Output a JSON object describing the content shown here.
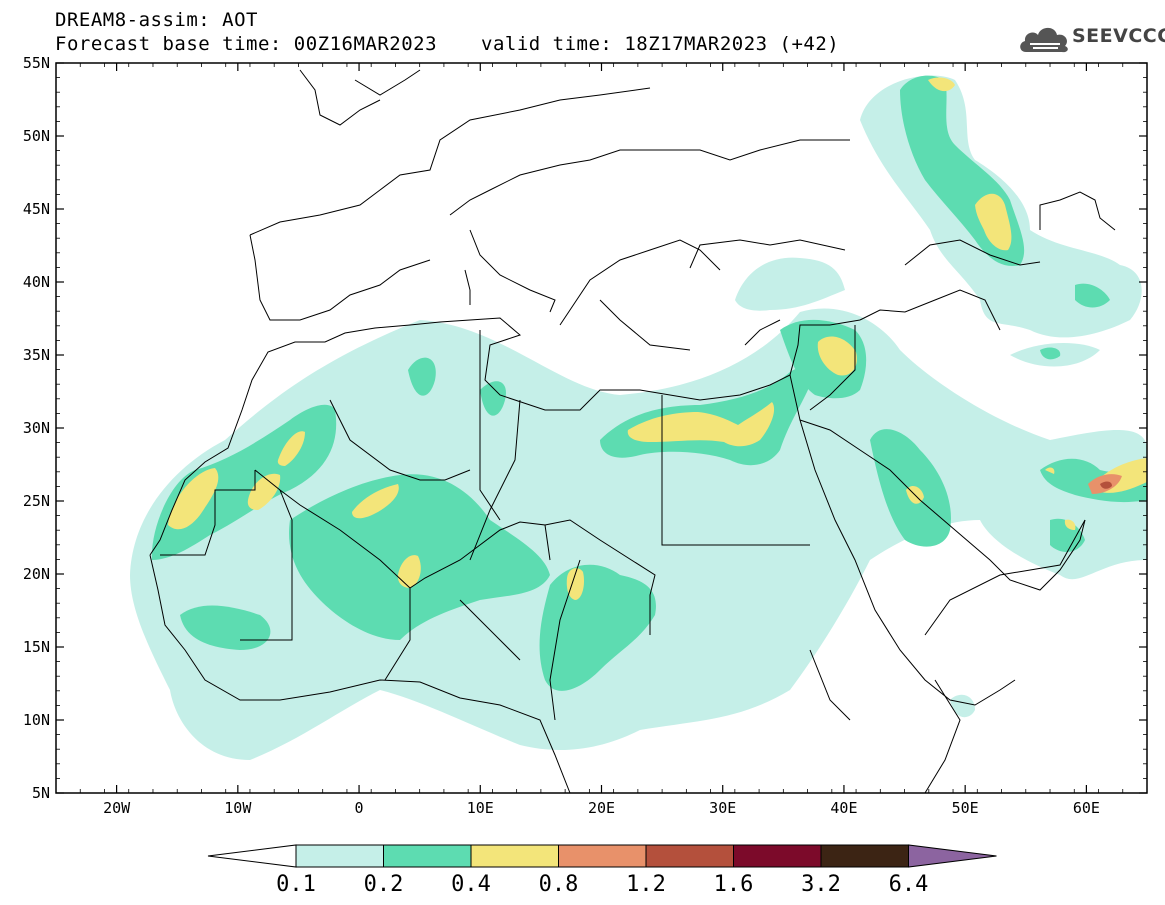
{
  "header": {
    "line1": "DREAM8-assim: AOT",
    "base_time": "Forecast base time: 00Z16MAR2023",
    "valid_time": "valid time: 18Z17MAR2023 (+42)"
  },
  "logo": {
    "text": "SEEVCCC",
    "icon": "cloud-icon"
  },
  "map": {
    "lon_range": [
      -25,
      65
    ],
    "lat_range": [
      5,
      55
    ],
    "lat_labels": [
      "55N",
      "50N",
      "45N",
      "40N",
      "35N",
      "30N",
      "25N",
      "20N",
      "15N",
      "10N",
      "5N"
    ],
    "lon_labels": [
      "20W",
      "10W",
      "0",
      "10E",
      "20E",
      "30E",
      "40E",
      "50E",
      "60E"
    ]
  },
  "colorbar": {
    "tick_labels": [
      "0.1",
      "0.2",
      "0.4",
      "0.8",
      "1.2",
      "1.6",
      "3.2",
      "6.4"
    ],
    "colors": {
      "below": "#ffffff",
      "0.1-0.2": "#c5efe8",
      "0.2-0.4": "#5ddcb1",
      "0.4-0.8": "#f3e57a",
      "0.8-1.2": "#e8916a",
      "1.2-1.6": "#b4503c",
      "1.6-3.2": "#7c0a2a",
      "3.2-6.4": "#3c2414",
      "above": "#8c64a0"
    }
  }
}
